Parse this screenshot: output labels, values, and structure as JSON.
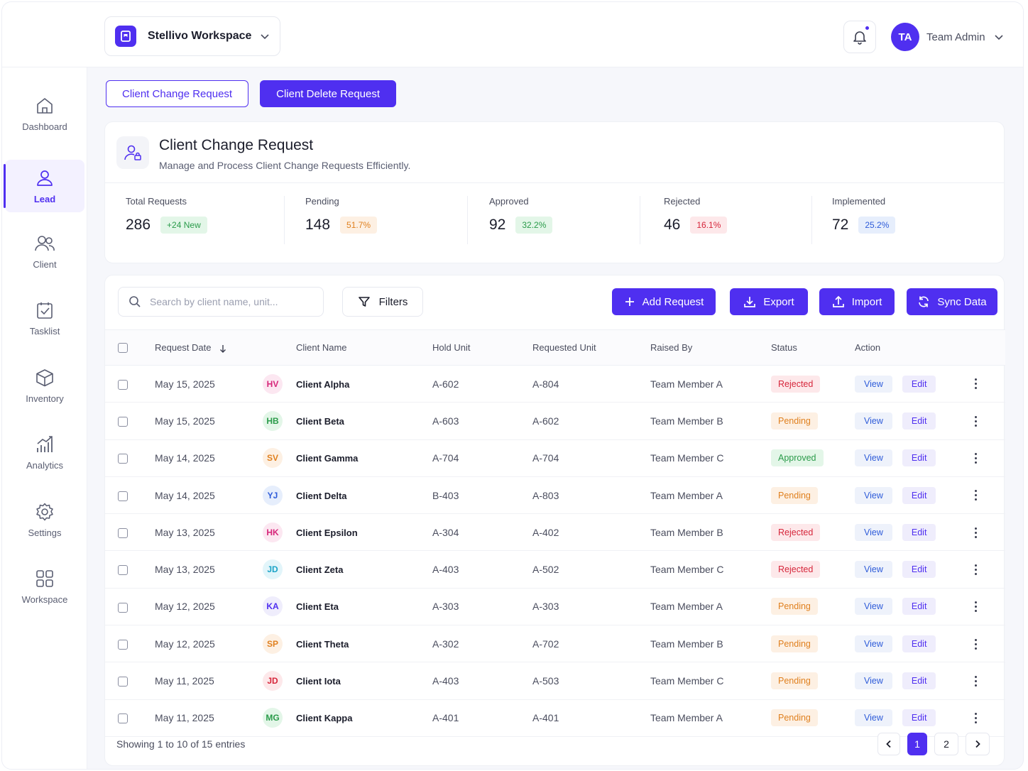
{
  "workspace": {
    "name": "Stellivo Workspace"
  },
  "user": {
    "initials": "TA",
    "name": "Team Admin"
  },
  "sidebar": {
    "items": [
      {
        "label": "Dashboard",
        "icon": "home-icon"
      },
      {
        "label": "Lead",
        "icon": "user-icon",
        "active": true
      },
      {
        "label": "Client",
        "icon": "users-icon"
      },
      {
        "label": "Tasklist",
        "icon": "clipboard-check-icon"
      },
      {
        "label": "Inventory",
        "icon": "box-icon"
      },
      {
        "label": "Analytics",
        "icon": "bar-chart-icon"
      },
      {
        "label": "Settings",
        "icon": "gear-icon"
      },
      {
        "label": "Workspace",
        "icon": "grid-icon"
      }
    ]
  },
  "tabs": [
    {
      "label": "Client Change Request",
      "active": false
    },
    {
      "label": "Client Delete Request",
      "active": true
    }
  ],
  "header": {
    "title": "Client Change Request",
    "subtitle": "Manage and Process Client Change Requests Efficiently."
  },
  "stats": [
    {
      "label": "Total Requests",
      "value": "286",
      "badge": "+24 New",
      "badge_color": "#2a9b4a",
      "badge_bg": "#e3f6e8"
    },
    {
      "label": "Pending",
      "value": "148",
      "badge": "51.7%",
      "badge_color": "#e0801f",
      "badge_bg": "#fdf0e3"
    },
    {
      "label": "Approved",
      "value": "92",
      "badge": "32.2%",
      "badge_color": "#2a9b4a",
      "badge_bg": "#e3f6e8"
    },
    {
      "label": "Rejected",
      "value": "46",
      "badge": "16.1%",
      "badge_color": "#d6263b",
      "badge_bg": "#fde8ea"
    },
    {
      "label": "Implemented",
      "value": "72",
      "badge": "25.2%",
      "badge_color": "#2f5cd9",
      "badge_bg": "#e6eefc"
    }
  ],
  "toolbar": {
    "search_placeholder": "Search by client name, unit...",
    "filters_label": "Filters",
    "add_label": "Add Request",
    "export_label": "Export",
    "import_label": "Import",
    "sync_label": "Sync Data"
  },
  "table": {
    "columns": [
      "Request Date",
      "Client Name",
      "Hold Unit",
      "Requested Unit",
      "Raised By",
      "Status",
      "Action"
    ],
    "view_label": "View",
    "edit_label": "Edit",
    "rows": [
      {
        "date": "May 15, 2025",
        "initials": "HV",
        "ini_color": "#d6267a",
        "ini_bg": "#fce7f1",
        "client": "Client Alpha",
        "hold": "A-602",
        "requested": "A-804",
        "raised_by": "Team Member A",
        "status": "Rejected"
      },
      {
        "date": "May 15, 2025",
        "initials": "HB",
        "ini_color": "#2a9b4a",
        "ini_bg": "#e3f6e8",
        "client": "Client Beta",
        "hold": "A-603",
        "requested": "A-602",
        "raised_by": "Team Member B",
        "status": "Pending"
      },
      {
        "date": "May 14, 2025",
        "initials": "SV",
        "ini_color": "#e0801f",
        "ini_bg": "#fdf0e3",
        "client": "Client Gamma",
        "hold": "A-704",
        "requested": "A-704",
        "raised_by": "Team Member C",
        "status": "Approved"
      },
      {
        "date": "May 14, 2025",
        "initials": "YJ",
        "ini_color": "#2f5cd9",
        "ini_bg": "#e6eefc",
        "client": "Client Delta",
        "hold": "B-403",
        "requested": "A-803",
        "raised_by": "Team Member A",
        "status": "Pending"
      },
      {
        "date": "May 13, 2025",
        "initials": "HK",
        "ini_color": "#d6267a",
        "ini_bg": "#fce7f1",
        "client": "Client Epsilon",
        "hold": "A-304",
        "requested": "A-402",
        "raised_by": "Team Member B",
        "status": "Rejected"
      },
      {
        "date": "May 13, 2025",
        "initials": "JD",
        "ini_color": "#1aa3c7",
        "ini_bg": "#e2f5fa",
        "client": "Client Zeta",
        "hold": "A-403",
        "requested": "A-502",
        "raised_by": "Team Member C",
        "status": "Rejected"
      },
      {
        "date": "May 12, 2025",
        "initials": "KA",
        "ini_color": "#4f2ff0",
        "ini_bg": "#efedfc",
        "client": "Client Eta",
        "hold": "A-303",
        "requested": "A-303",
        "raised_by": "Team Member A",
        "status": "Pending"
      },
      {
        "date": "May 12, 2025",
        "initials": "SP",
        "ini_color": "#e0801f",
        "ini_bg": "#fdf0e3",
        "client": "Client Theta",
        "hold": "A-302",
        "requested": "A-702",
        "raised_by": "Team Member B",
        "status": "Pending"
      },
      {
        "date": "May 11, 2025",
        "initials": "JD",
        "ini_color": "#d6263b",
        "ini_bg": "#fde8ea",
        "client": "Client Iota",
        "hold": "A-403",
        "requested": "A-503",
        "raised_by": "Team Member C",
        "status": "Pending"
      },
      {
        "date": "May 11, 2025",
        "initials": "MG",
        "ini_color": "#2a9b4a",
        "ini_bg": "#e3f6e8",
        "client": "Client Kappa",
        "hold": "A-401",
        "requested": "A-401",
        "raised_by": "Team Member A",
        "status": "Pending"
      }
    ]
  },
  "footer": {
    "showing": "Showing 1 to 10 of 15 entries",
    "pages": [
      "1",
      "2"
    ],
    "current_page": "1"
  },
  "colors": {
    "accent": "#4f2ff0"
  }
}
